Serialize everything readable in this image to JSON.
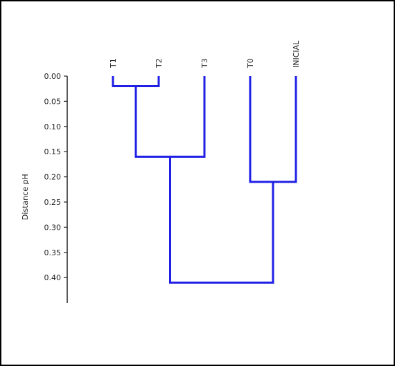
{
  "chart_data": {
    "type": "dendrogram",
    "title": "",
    "ylabel": "Distance pH",
    "ylim": [
      0,
      0.45
    ],
    "y_ticks": [
      "0.00",
      "0.05",
      "0.10",
      "0.15",
      "0.20",
      "0.25",
      "0.30",
      "0.35",
      "0.40"
    ],
    "leaves": [
      "T1",
      "T2",
      "T3",
      "T0",
      "INICIAL"
    ],
    "merges": [
      {
        "a": "T1",
        "b": "T2",
        "height": 0.02
      },
      {
        "a": "T1+T2",
        "b": "T3",
        "height": 0.16
      },
      {
        "a": "T0",
        "b": "INICIAL",
        "height": 0.21
      },
      {
        "a": "T1+T2+T3",
        "b": "T0+INICIAL",
        "height": 0.41
      }
    ],
    "line_color": "#1f1fe6",
    "axis_color": "#222222"
  }
}
